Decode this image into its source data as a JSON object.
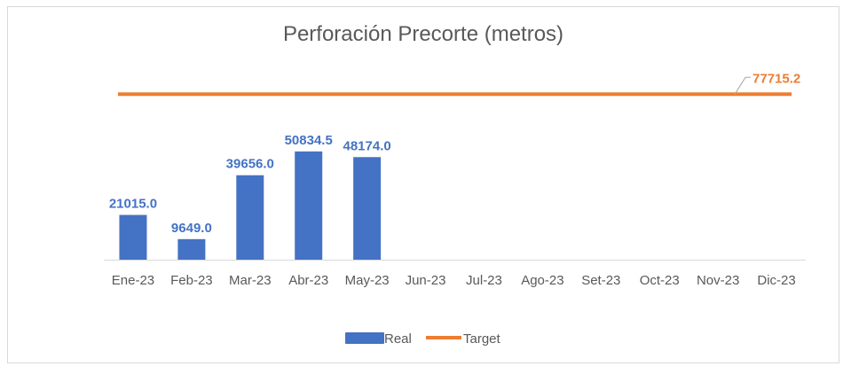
{
  "chart_data": {
    "type": "bar",
    "title": "Perforación Precorte (metros)",
    "categories": [
      "Ene-23",
      "Feb-23",
      "Mar-23",
      "Abr-23",
      "May-23",
      "Jun-23",
      "Jul-23",
      "Ago-23",
      "Set-23",
      "Oct-23",
      "Nov-23",
      "Dic-23"
    ],
    "series": [
      {
        "name": "Real",
        "type": "bar",
        "color": "#4472c4",
        "values": [
          21015.0,
          9649.0,
          39656.0,
          50834.5,
          48174.0,
          null,
          null,
          null,
          null,
          null,
          null,
          null
        ],
        "labels": [
          "21015.0",
          "9649.0",
          "39656.0",
          "50834.5",
          "48174.0"
        ]
      },
      {
        "name": "Target",
        "type": "line",
        "color": "#ed7d31",
        "values": [
          77715.2,
          77715.2,
          77715.2,
          77715.2,
          77715.2,
          77715.2,
          77715.2,
          77715.2,
          77715.2,
          77715.2,
          77715.2,
          77715.2
        ],
        "label": "77715.2"
      }
    ],
    "legend_position": "bottom",
    "grid": false
  }
}
